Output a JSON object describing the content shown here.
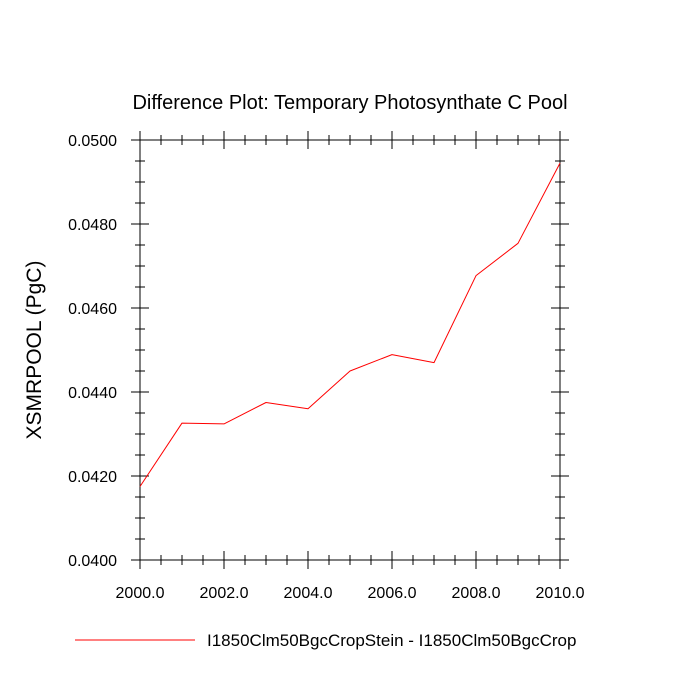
{
  "chart_data": {
    "type": "line",
    "title": "Difference Plot: Temporary Photosynthate C Pool",
    "xlabel": "",
    "ylabel": "XSMRPOOL  (PgC)",
    "xlim": [
      2000,
      2010
    ],
    "ylim": [
      0.04,
      0.05
    ],
    "x_ticks": [
      2000,
      2002,
      2004,
      2006,
      2008,
      2010
    ],
    "x_tick_labels": [
      "2000.0",
      "2002.0",
      "2004.0",
      "2006.0",
      "2008.0",
      "2010.0"
    ],
    "y_ticks": [
      0.04,
      0.042,
      0.044,
      0.046,
      0.048,
      0.05
    ],
    "y_tick_labels": [
      "0.0400",
      "0.0420",
      "0.0440",
      "0.0460",
      "0.0480",
      "0.0500"
    ],
    "x_minor_step": 0.5,
    "y_minor_step": 0.0005,
    "grid": false,
    "legend_position": "bottom",
    "series": [
      {
        "name": "I1850Clm50BgcCropStein - I1850Clm50BgcCrop",
        "color": "#ff0000",
        "x": [
          2000,
          2001,
          2002,
          2003,
          2004,
          2005,
          2006,
          2007,
          2008,
          2009,
          2010
        ],
        "y": [
          0.04175,
          0.04326,
          0.04324,
          0.04375,
          0.0436,
          0.0445,
          0.04489,
          0.0447,
          0.04677,
          0.04754,
          0.04945
        ]
      }
    ]
  }
}
